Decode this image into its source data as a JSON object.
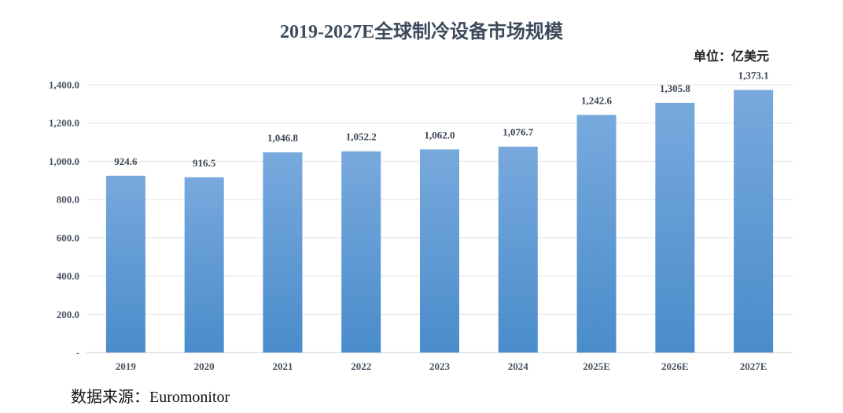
{
  "chart_data": {
    "type": "bar",
    "title": "2019-2027E全球制冷设备市场规模",
    "unit": "单位：亿美元",
    "categories": [
      "2019",
      "2020",
      "2021",
      "2022",
      "2023",
      "2024",
      "2025E",
      "2026E",
      "2027E"
    ],
    "values": [
      924.6,
      916.5,
      1046.8,
      1052.2,
      1062.0,
      1076.7,
      1242.6,
      1305.8,
      1373.1
    ],
    "data_labels": [
      "924.6",
      "916.5",
      "1,046.8",
      "1,052.2",
      "1,062.0",
      "1,076.7",
      "1,242.6",
      "1,305.8",
      "1,373.1"
    ],
    "y_ticks": [
      0,
      200,
      400,
      600,
      800,
      1000,
      1200,
      1400
    ],
    "y_tick_labels": [
      "-",
      "200.0",
      "400.0",
      "600.0",
      "800.0",
      "1,000.0",
      "1,200.0",
      "1,400.0"
    ],
    "ylim": [
      0,
      1400
    ],
    "grid": true,
    "legend": "none",
    "bar_color_top": "#78a9dd",
    "bar_color_bottom": "#4a8ccb"
  },
  "source": "数据来源：Euromonitor"
}
